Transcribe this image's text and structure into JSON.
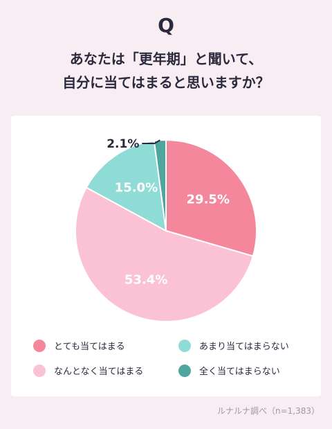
{
  "header": {
    "q_mark": "Q",
    "question_line1": "あなたは「更年期」と聞いて、",
    "question_line2": "自分に当てはまると思いますか？"
  },
  "chart_data": {
    "type": "pie",
    "categories": [
      "とても当てはまる",
      "なんとなく当てはまる",
      "あまり当てはまらない",
      "全く当てはまらない"
    ],
    "values": [
      29.5,
      53.4,
      15.0,
      2.1
    ],
    "labels": [
      "29.5%",
      "53.4%",
      "15.0%",
      "2.1%"
    ],
    "colors": [
      "#f4879b",
      "#fbc2d5",
      "#8fdbd5",
      "#4fa69f"
    ],
    "legend_position": "bottom"
  },
  "footer": {
    "source": "ルナルナ調べ（n=1,383）"
  }
}
